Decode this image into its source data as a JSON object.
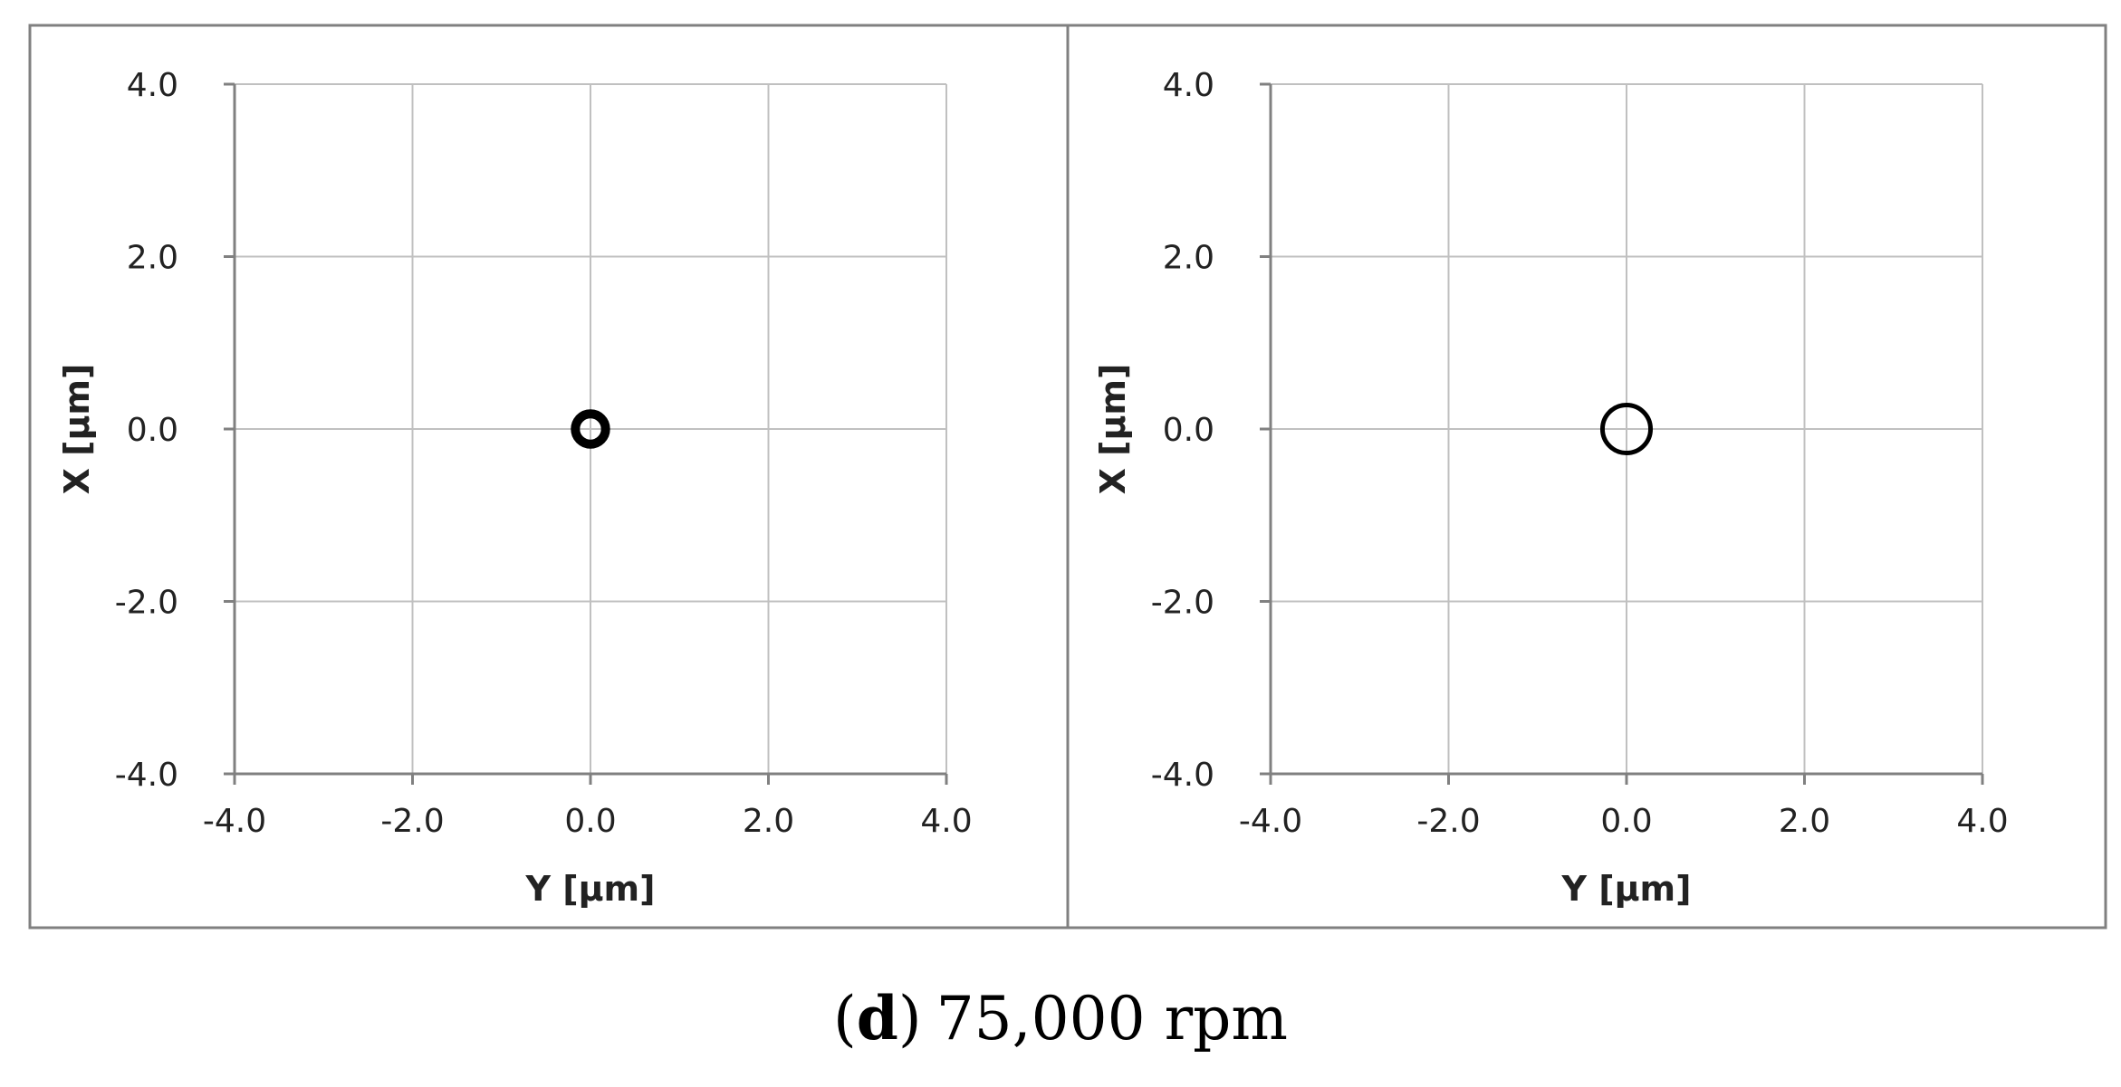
{
  "caption": {
    "letter": "d",
    "text": "75,000 rpm"
  },
  "colors": {
    "frame": "#808080",
    "grid": "#c0c0c0",
    "axis": "#808080",
    "trace": "#000000"
  },
  "chart_data": [
    {
      "type": "scatter",
      "title": "",
      "xlabel": "Y [µm]",
      "ylabel": "X [µm]",
      "xlim": [
        -4.0,
        4.0
      ],
      "ylim": [
        -4.0,
        4.0
      ],
      "xticks": [
        "-4.0",
        "-2.0",
        "0.0",
        "2.0",
        "4.0"
      ],
      "yticks": [
        "4.0",
        "2.0",
        "0.0",
        "-2.0",
        "-4.0"
      ],
      "grid": true,
      "series": [
        {
          "shape": "orbit",
          "center": [
            0.0,
            0.0
          ],
          "radius": 0.17,
          "line_width": "thick"
        }
      ]
    },
    {
      "type": "scatter",
      "title": "",
      "xlabel": "Y [µm]",
      "ylabel": "X [µm]",
      "xlim": [
        -4.0,
        4.0
      ],
      "ylim": [
        -4.0,
        4.0
      ],
      "xticks": [
        "-4.0",
        "-2.0",
        "0.0",
        "2.0",
        "4.0"
      ],
      "yticks": [
        "4.0",
        "2.0",
        "0.0",
        "-2.0",
        "-4.0"
      ],
      "grid": true,
      "series": [
        {
          "shape": "orbit",
          "center": [
            0.0,
            0.0
          ],
          "radius": 0.27,
          "line_width": "normal"
        }
      ]
    }
  ]
}
